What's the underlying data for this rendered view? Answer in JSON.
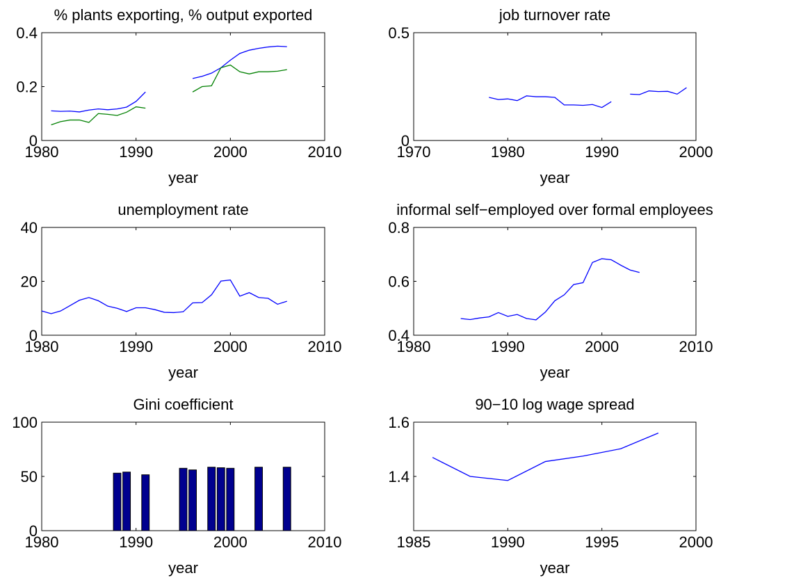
{
  "chart_data": [
    {
      "type": "line",
      "title": "% plants exporting, % output exported",
      "xlabel": "year",
      "x": [
        1981,
        1982,
        1983,
        1984,
        1985,
        1986,
        1987,
        1988,
        1989,
        1990,
        1991,
        1992,
        1993,
        1994,
        1995,
        1996,
        1997,
        1998,
        1999,
        2000,
        2001,
        2002,
        2003,
        2004,
        2005,
        2006
      ],
      "series": [
        {
          "color": "#0000ff",
          "values": [
            0.11,
            0.108,
            0.109,
            0.106,
            0.113,
            0.117,
            0.114,
            0.117,
            0.124,
            0.145,
            0.18,
            null,
            null,
            null,
            null,
            0.23,
            0.238,
            0.25,
            0.27,
            0.298,
            0.323,
            0.335,
            0.342,
            0.347,
            0.35,
            0.348
          ]
        },
        {
          "color": "#008000",
          "values": [
            0.058,
            0.07,
            0.076,
            0.076,
            0.067,
            0.1,
            0.097,
            0.093,
            0.105,
            0.125,
            0.12,
            null,
            null,
            null,
            null,
            0.18,
            0.2,
            0.203,
            0.27,
            0.28,
            0.255,
            0.247,
            0.255,
            0.255,
            0.257,
            0.263
          ]
        }
      ],
      "xlim": [
        1980,
        2010
      ],
      "xticks": [
        1980,
        1990,
        2000,
        2010
      ],
      "ylim": [
        0,
        0.4
      ],
      "yticks": [
        0,
        0.2,
        0.4
      ]
    },
    {
      "type": "line",
      "title": "job turnover rate",
      "xlabel": "year",
      "x": [
        1978,
        1979,
        1980,
        1981,
        1982,
        1983,
        1984,
        1985,
        1986,
        1987,
        1988,
        1989,
        1990,
        1991,
        1992,
        1993,
        1994,
        1995,
        1996,
        1997,
        1998,
        1999
      ],
      "series": [
        {
          "color": "#0000ff",
          "values": [
            0.2,
            0.19,
            0.193,
            0.185,
            0.207,
            0.203,
            0.203,
            0.2,
            0.165,
            0.165,
            0.163,
            0.167,
            0.153,
            0.18,
            null,
            0.215,
            0.213,
            0.23,
            0.227,
            0.228,
            0.215,
            0.245
          ]
        }
      ],
      "xlim": [
        1970,
        2000
      ],
      "xticks": [
        1970,
        1980,
        1990,
        2000
      ],
      "ylim": [
        0,
        0.5
      ],
      "yticks": [
        0,
        0.5
      ]
    },
    {
      "type": "line",
      "title": "unemployment rate",
      "xlabel": "year",
      "x": [
        1980,
        1981,
        1982,
        1983,
        1984,
        1985,
        1986,
        1987,
        1988,
        1989,
        1990,
        1991,
        1992,
        1993,
        1994,
        1995,
        1996,
        1997,
        1998,
        1999,
        2000,
        2001,
        2002,
        2003,
        2004,
        2005,
        2006
      ],
      "series": [
        {
          "color": "#0000ff",
          "values": [
            9,
            8,
            9,
            11,
            13,
            14,
            12.8,
            10.8,
            10,
            8.8,
            10.2,
            10.2,
            9.5,
            8.5,
            8.4,
            8.7,
            12,
            12.1,
            15,
            20.1,
            20.5,
            14.5,
            15.8,
            14,
            13.7,
            11.5,
            12.6
          ]
        }
      ],
      "xlim": [
        1980,
        2010
      ],
      "xticks": [
        1980,
        1990,
        2000,
        2010
      ],
      "ylim": [
        0,
        40
      ],
      "yticks": [
        0,
        20,
        40
      ]
    },
    {
      "type": "line",
      "title": "informal self−employed over formal employees",
      "xlabel": "year",
      "x": [
        1985,
        1986,
        1987,
        1988,
        1989,
        1990,
        1991,
        1992,
        1993,
        1994,
        1995,
        1996,
        1997,
        1998,
        1999,
        2000,
        2001,
        2002,
        2003,
        2004
      ],
      "series": [
        {
          "color": "#0000ff",
          "values": [
            0.462,
            0.458,
            0.464,
            0.468,
            0.484,
            0.47,
            0.477,
            0.462,
            0.457,
            0.486,
            0.528,
            0.55,
            0.588,
            0.595,
            0.67,
            0.684,
            0.68,
            0.66,
            0.642,
            0.633
          ]
        }
      ],
      "xlim": [
        1980,
        2010
      ],
      "xticks": [
        1980,
        1990,
        2000,
        2010
      ],
      "ylim": [
        0.4,
        0.8
      ],
      "yticks": [
        0.4,
        0.6,
        0.8
      ]
    },
    {
      "type": "bar",
      "title": "Gini coefficient",
      "xlabel": "year",
      "x": [
        1988,
        1989,
        1991,
        1995,
        1996,
        1998,
        1999,
        2000,
        2003,
        2006
      ],
      "values": [
        53,
        54,
        51.5,
        57.5,
        56,
        58.5,
        58,
        57.5,
        58.5,
        58.5
      ],
      "color": "#00008f",
      "xlim": [
        1980,
        2010
      ],
      "xticks": [
        1980,
        1990,
        2000,
        2010
      ],
      "ylim": [
        0,
        100
      ],
      "yticks": [
        0,
        50,
        100
      ]
    },
    {
      "type": "line",
      "title": "90−10 log wage spread",
      "xlabel": "year",
      "x": [
        1986,
        1988,
        1990,
        1992,
        1994,
        1996,
        1998
      ],
      "series": [
        {
          "color": "#0000ff",
          "values": [
            1.47,
            1.4,
            1.385,
            1.455,
            1.475,
            1.502,
            1.56
          ]
        }
      ],
      "xlim": [
        1985,
        2000
      ],
      "xticks": [
        1985,
        1990,
        1995,
        2000
      ],
      "ylim": [
        1.2,
        1.6
      ],
      "yticks": [
        1.4,
        1.6
      ]
    }
  ]
}
